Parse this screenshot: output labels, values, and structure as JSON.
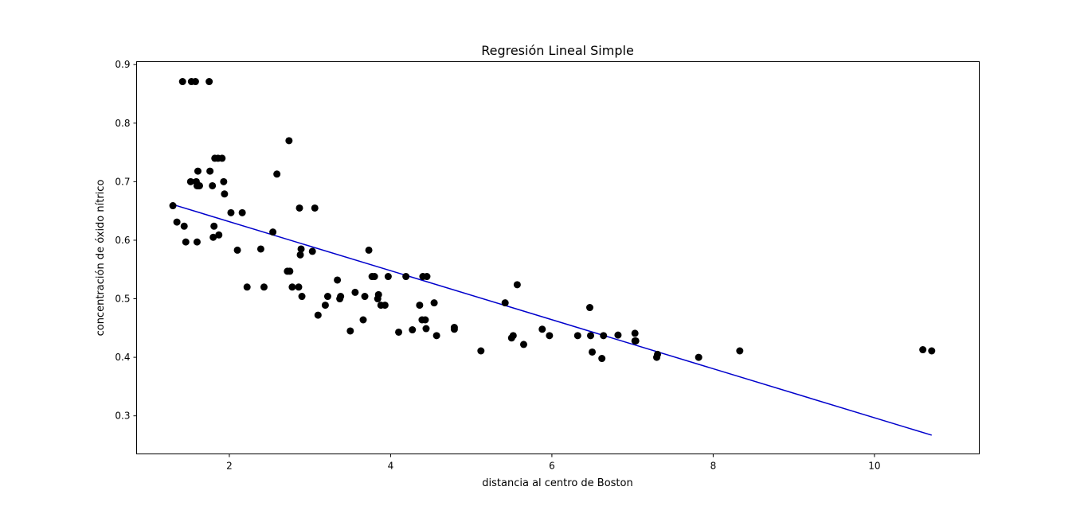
{
  "chart_data": {
    "type": "scatter",
    "title": "Regresión Lineal Simple",
    "xlabel": "distancia al centro de Boston",
    "ylabel": "concentración de óxido nítrico",
    "xlim": [
      0.85,
      11.3
    ],
    "ylim": [
      0.235,
      0.905
    ],
    "xticks": [
      2,
      4,
      6,
      8,
      10
    ],
    "yticks": [
      0.3,
      0.4,
      0.5,
      0.6,
      0.7,
      0.8,
      0.9
    ],
    "grid": false,
    "colors": {
      "points": "#000000",
      "line": "#0000cc"
    },
    "series": [
      {
        "type": "scatter",
        "x": [
          1.3,
          1.35,
          1.42,
          1.44,
          1.46,
          1.52,
          1.53,
          1.58,
          1.59,
          1.6,
          1.6,
          1.61,
          1.62,
          1.63,
          1.75,
          1.76,
          1.79,
          1.8,
          1.81,
          1.82,
          1.86,
          1.87,
          1.91,
          1.93,
          1.94,
          2.02,
          2.1,
          2.16,
          2.22,
          2.39,
          2.43,
          2.54,
          2.59,
          2.72,
          2.74,
          2.75,
          2.78,
          2.86,
          2.87,
          2.88,
          2.89,
          2.9,
          3.03,
          3.06,
          3.1,
          3.19,
          3.22,
          3.34,
          3.37,
          3.38,
          3.5,
          3.56,
          3.66,
          3.68,
          3.73,
          3.77,
          3.8,
          3.84,
          3.85,
          3.88,
          3.93,
          3.97,
          4.1,
          4.19,
          4.27,
          4.36,
          4.39,
          4.4,
          4.43,
          4.44,
          4.45,
          4.54,
          4.57,
          4.79,
          4.79,
          5.12,
          5.42,
          5.5,
          5.52,
          5.57,
          5.65,
          5.88,
          5.97,
          6.32,
          6.47,
          6.48,
          6.5,
          6.62,
          6.64,
          6.82,
          7.03,
          7.03,
          7.04,
          7.3,
          7.31,
          7.82,
          8.33,
          10.6,
          10.71
        ],
        "y": [
          0.659,
          0.631,
          0.871,
          0.624,
          0.597,
          0.7,
          0.871,
          0.871,
          0.7,
          0.693,
          0.597,
          0.718,
          0.693,
          0.693,
          0.871,
          0.718,
          0.693,
          0.605,
          0.624,
          0.74,
          0.74,
          0.609,
          0.74,
          0.7,
          0.679,
          0.647,
          0.583,
          0.647,
          0.52,
          0.585,
          0.52,
          0.614,
          0.713,
          0.547,
          0.77,
          0.547,
          0.52,
          0.52,
          0.655,
          0.575,
          0.585,
          0.504,
          0.581,
          0.655,
          0.472,
          0.489,
          0.504,
          0.532,
          0.5,
          0.504,
          0.445,
          0.511,
          0.464,
          0.504,
          0.583,
          0.538,
          0.538,
          0.5,
          0.507,
          0.489,
          0.489,
          0.538,
          0.443,
          0.538,
          0.447,
          0.489,
          0.464,
          0.538,
          0.464,
          0.449,
          0.538,
          0.493,
          0.437,
          0.448,
          0.451,
          0.411,
          0.493,
          0.433,
          0.437,
          0.524,
          0.422,
          0.448,
          0.437,
          0.437,
          0.485,
          0.437,
          0.409,
          0.398,
          0.437,
          0.438,
          0.428,
          0.441,
          0.428,
          0.4,
          0.405,
          0.4,
          0.411,
          0.413,
          0.411
        ]
      },
      {
        "type": "line",
        "x": [
          1.3,
          10.71
        ],
        "y": [
          0.661,
          0.267
        ]
      }
    ]
  }
}
